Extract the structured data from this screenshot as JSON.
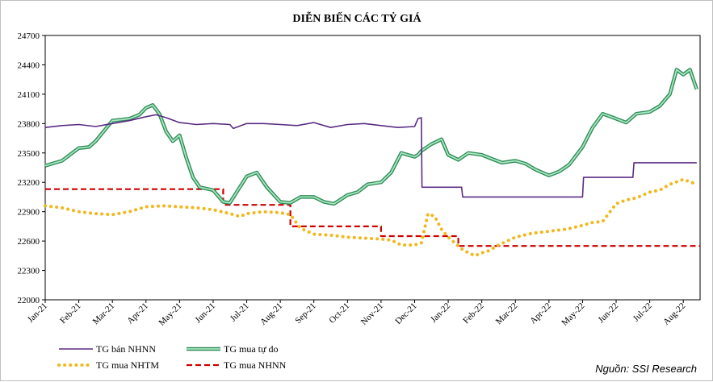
{
  "chart_data": {
    "type": "line",
    "title": "DIỄN BIẾN CÁC TỶ GIÁ",
    "source": "Nguồn: SSI Research",
    "ylim": [
      22000,
      24700
    ],
    "yticks": [
      22000,
      22300,
      22600,
      22900,
      23200,
      23500,
      23800,
      24100,
      24400,
      24700
    ],
    "ytick_labels": [
      "22000",
      "22300",
      "22600",
      "22900",
      "23200",
      "23500",
      "23800",
      "24100",
      "24400",
      "24700"
    ],
    "xlim": [
      0,
      19.5
    ],
    "xtick_labels": [
      "Jan-21",
      "Feb-21",
      "Mar-21",
      "Apr-21",
      "May-21",
      "Jun-21",
      "Jul-21",
      "Aug-21",
      "Sep-21",
      "Oct-21",
      "Nov-21",
      "Dec-21",
      "Jan-22",
      "Feb-22",
      "Mar-22",
      "Apr-22",
      "May-22",
      "Jun-22",
      "Jul-22",
      "Aug-22"
    ],
    "legend_position": "bottom",
    "grid": false,
    "series": [
      {
        "name": "TG bán NHNN",
        "color": "#5b2c83",
        "style": "solid",
        "x": [
          0,
          0.5,
          1,
          1.5,
          2,
          2.5,
          3,
          3.3,
          3.6,
          4,
          4.5,
          5,
          5.5,
          5.6,
          6,
          6.5,
          7,
          7.5,
          8,
          8.5,
          9,
          9.5,
          10,
          10.5,
          11,
          11.1,
          11.2,
          11.22,
          12,
          12.4,
          12.43,
          13,
          14,
          15,
          16,
          16.03,
          17,
          17.5,
          17.53,
          18,
          19,
          19.4
        ],
        "y": [
          23760,
          23780,
          23790,
          23770,
          23800,
          23830,
          23870,
          23890,
          23860,
          23810,
          23790,
          23800,
          23790,
          23750,
          23800,
          23800,
          23790,
          23780,
          23810,
          23760,
          23790,
          23800,
          23780,
          23760,
          23770,
          23850,
          23860,
          23150,
          23150,
          23150,
          23050,
          23050,
          23050,
          23050,
          23050,
          23250,
          23250,
          23250,
          23400,
          23400,
          23400,
          23400
        ]
      },
      {
        "name": "TG mua tự do",
        "color": "#3cb371",
        "style": "solid",
        "x": [
          0,
          0.5,
          1,
          1.3,
          1.5,
          2,
          2.5,
          2.8,
          3,
          3.2,
          3.4,
          3.6,
          3.8,
          4,
          4.2,
          4.4,
          4.6,
          5,
          5.3,
          5.5,
          5.7,
          6,
          6.3,
          6.6,
          7,
          7.3,
          7.6,
          8,
          8.3,
          8.6,
          9,
          9.3,
          9.6,
          10,
          10.3,
          10.6,
          11,
          11.1,
          11.2,
          11.5,
          11.8,
          12,
          12.3,
          12.6,
          13,
          13.3,
          13.6,
          14,
          14.3,
          14.6,
          15,
          15.3,
          15.6,
          16,
          16.3,
          16.6,
          17,
          17.3,
          17.6,
          18,
          18.3,
          18.6,
          18.8,
          19,
          19.2,
          19.4
        ],
        "y": [
          23370,
          23420,
          23550,
          23560,
          23620,
          23830,
          23850,
          23890,
          23960,
          23990,
          23900,
          23720,
          23620,
          23680,
          23450,
          23250,
          23150,
          23120,
          23000,
          22990,
          23100,
          23260,
          23300,
          23150,
          23000,
          22990,
          23050,
          23050,
          23000,
          22980,
          23070,
          23100,
          23180,
          23200,
          23300,
          23500,
          23460,
          23480,
          23520,
          23590,
          23640,
          23480,
          23430,
          23500,
          23480,
          23440,
          23400,
          23420,
          23390,
          23330,
          23270,
          23310,
          23380,
          23560,
          23760,
          23900,
          23850,
          23810,
          23900,
          23920,
          23980,
          24100,
          24350,
          24300,
          24350,
          24150
        ]
      },
      {
        "name": "TG mua NHTM",
        "color": "#f0b820",
        "style": "dotted",
        "x": [
          0,
          0.5,
          1,
          1.5,
          2,
          2.5,
          3,
          3.5,
          4,
          4.5,
          5,
          5.5,
          5.8,
          6,
          6.5,
          7,
          7.3,
          7.6,
          8,
          8.5,
          9,
          9.5,
          10,
          10.3,
          10.6,
          11,
          11.2,
          11.4,
          11.6,
          11.8,
          12,
          12.2,
          12.4,
          12.6,
          12.8,
          13,
          13.2,
          13.5,
          14,
          14.5,
          15,
          15.5,
          16,
          16.3,
          16.6,
          17,
          17.3,
          17.6,
          18,
          18.3,
          18.6,
          19,
          19.4
        ],
        "y": [
          22960,
          22940,
          22900,
          22880,
          22870,
          22900,
          22950,
          22960,
          22950,
          22940,
          22920,
          22880,
          22850,
          22880,
          22900,
          22890,
          22870,
          22730,
          22670,
          22660,
          22640,
          22630,
          22620,
          22610,
          22560,
          22560,
          22580,
          22880,
          22850,
          22720,
          22640,
          22580,
          22520,
          22480,
          22450,
          22480,
          22500,
          22560,
          22640,
          22680,
          22700,
          22720,
          22760,
          22790,
          22800,
          22980,
          23020,
          23040,
          23100,
          23120,
          23180,
          23230,
          23180
        ]
      },
      {
        "name": "TG mua NHNN",
        "color": "#cc0000",
        "style": "dashed",
        "x": [
          0,
          5.3,
          5.3,
          7.3,
          7.3,
          10,
          10,
          12.3,
          12.3,
          19.5
        ],
        "y": [
          23130,
          23130,
          22970,
          22970,
          22750,
          22750,
          22650,
          22650,
          22550,
          22550
        ]
      }
    ]
  }
}
